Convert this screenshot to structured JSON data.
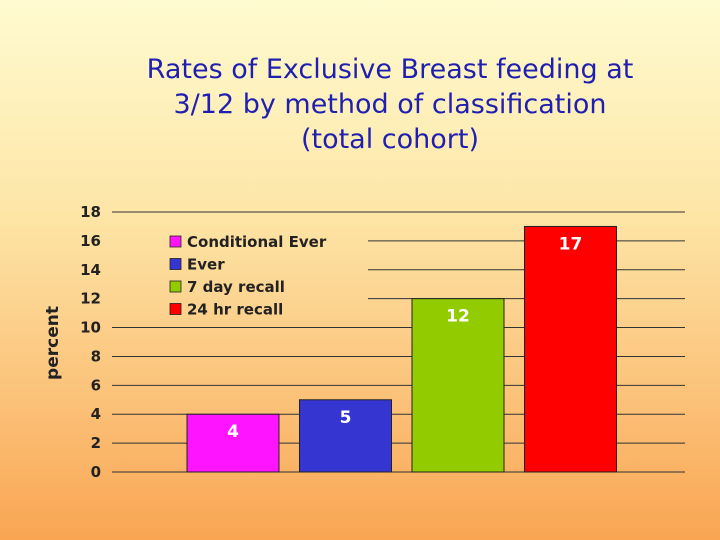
{
  "chart_data": {
    "type": "bar",
    "title_lines": [
      "Rates of Exclusive Breast feeding at",
      "3/12 by method of classification",
      "(total cohort)"
    ],
    "ylabel": "percent",
    "xlabel": "",
    "ylim": [
      0,
      18
    ],
    "yticks": [
      0,
      2,
      4,
      6,
      8,
      10,
      12,
      14,
      16,
      18
    ],
    "grid": true,
    "legend_position": "top-left",
    "categories": [
      "Conditional Ever",
      "Ever",
      "7 day recall",
      "24 hr recall"
    ],
    "values": [
      4,
      5,
      12,
      17
    ],
    "colors": [
      "#ff14ff",
      "#3535d2",
      "#92cb00",
      "#ff0000"
    ]
  }
}
